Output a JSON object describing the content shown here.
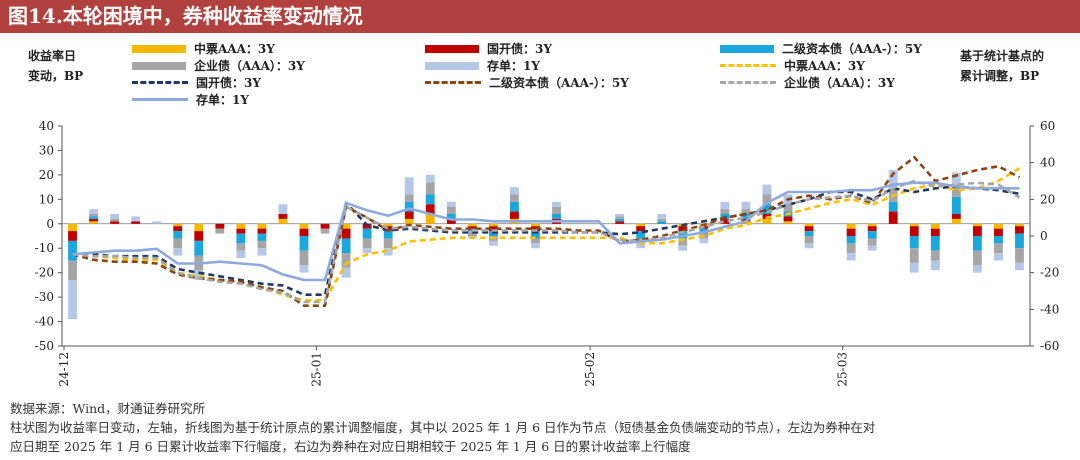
{
  "title": "图14.本轮困境中，券种收益率变动情况",
  "left_axis_title_line1": "收益率日",
  "left_axis_title_line2": "变动，BP",
  "right_axis_title_line1": "基于统计基点的",
  "right_axis_title_line2": "累计调整，BP",
  "legend": [
    {
      "label": "中票AAA：3Y",
      "kind": "bar",
      "color": "#f5b800"
    },
    {
      "label": "国开债：3Y",
      "kind": "bar",
      "color": "#c00000"
    },
    {
      "label": "二级资本债（AAA-）：5Y",
      "kind": "bar",
      "color": "#1aa7de"
    },
    {
      "label": "企业债（AAA）：3Y",
      "kind": "bar",
      "color": "#a6a6a6"
    },
    {
      "label": "存单：1Y",
      "kind": "bar",
      "color": "#b4c7e7"
    },
    {
      "label": "中票AAA：3Y",
      "kind": "line",
      "color": "#ffc000",
      "dash": "6,4"
    },
    {
      "label": "国开债：3Y",
      "kind": "line",
      "color": "#1f3864",
      "dash": "6,4"
    },
    {
      "label": "二级资本债（AAA-）：5Y",
      "kind": "line",
      "color": "#8b4513",
      "dash": "6,4"
    },
    {
      "label": "企业债（AAA）：3Y",
      "kind": "line",
      "color": "#a6a6a6",
      "dash": "6,4"
    },
    {
      "label": "存单：1Y",
      "kind": "line",
      "color": "#8ea9db",
      "dash": ""
    }
  ],
  "footer": {
    "source": "数据来源：Wind，财通证券研究所",
    "note_line1": "柱状图为收益率日变动，左轴，折线图为基于统计原点的累计调整幅度，其中以 2025 年 1 月 6 日作为节点（短债基金负债端变动的节点），左边为券种在对",
    "note_line2": "应日期至 2025 年 1 月 6 日累计收益率下行幅度，右边为券种在对应日期相较于 2025 年 1 月 6 日的累计收益率上行幅度"
  },
  "chart_data": {
    "type": "bar+line",
    "x_tick_labels": [
      "24-12",
      "25-01",
      "25-02",
      "25-03"
    ],
    "x_tick_index": [
      0,
      12,
      25,
      37
    ],
    "n_days": 46,
    "left_axis": {
      "range": [
        -50,
        40
      ],
      "ticks": [
        40,
        30,
        20,
        10,
        0,
        -10,
        -20,
        -30,
        -40,
        -50
      ]
    },
    "right_axis": {
      "range": [
        -60,
        60
      ],
      "ticks": [
        60,
        40,
        20,
        0,
        -20,
        -40,
        -60
      ]
    },
    "bar_series": [
      {
        "name": "中票AAA：3Y",
        "values": [
          -3,
          1,
          0,
          0,
          0,
          -1,
          -3,
          0,
          -2,
          -2,
          2,
          -2,
          0,
          -2,
          0,
          -1,
          2,
          4,
          0,
          -1,
          -1,
          2,
          -1,
          0,
          0,
          0,
          0,
          -1,
          0,
          -1,
          -1,
          0,
          1,
          2,
          1,
          -1,
          0,
          -2,
          -1,
          0,
          -1,
          -2,
          2,
          -1,
          -2,
          -1
        ]
      },
      {
        "name": "国开债：3Y",
        "values": [
          -4,
          1,
          1,
          1,
          0,
          -2,
          -4,
          -2,
          -2,
          -2,
          2,
          -3,
          -2,
          -4,
          -2,
          -2,
          3,
          4,
          2,
          -1,
          -2,
          3,
          -2,
          2,
          0,
          0,
          1,
          -2,
          0,
          -2,
          -1,
          2,
          1,
          2,
          2,
          -2,
          0,
          -3,
          -2,
          5,
          -4,
          -3,
          2,
          -4,
          -3,
          -3
        ]
      },
      {
        "name": "二级资本债（AAA-）：5Y",
        "values": [
          -8,
          1,
          0,
          0,
          0,
          -3,
          -6,
          0,
          -4,
          -3,
          0,
          -6,
          0,
          -6,
          -4,
          -3,
          4,
          4,
          2,
          -1,
          -2,
          4,
          -3,
          2,
          0,
          0,
          1,
          -3,
          1,
          -3,
          -2,
          2,
          2,
          4,
          2,
          -2,
          0,
          -3,
          -3,
          4,
          -5,
          -6,
          7,
          -6,
          -3,
          -6
        ]
      },
      {
        "name": "企业债（AAA）：3Y",
        "values": [
          -8,
          1,
          1,
          0,
          0,
          -4,
          -6,
          -2,
          -3,
          -3,
          0,
          -6,
          -2,
          -6,
          -4,
          -4,
          3,
          5,
          3,
          -2,
          -2,
          3,
          -2,
          3,
          0,
          0,
          1,
          -2,
          1,
          -3,
          -2,
          2,
          2,
          4,
          3,
          -3,
          0,
          -4,
          -3,
          5,
          -6,
          -4,
          5,
          -6,
          -4,
          -6
        ]
      },
      {
        "name": "存单：1Y",
        "values": [
          -16,
          2,
          2,
          2,
          1,
          -3,
          -4,
          0,
          -3,
          -3,
          4,
          -3,
          0,
          -4,
          -2,
          -3,
          7,
          3,
          2,
          -1,
          -2,
          3,
          -2,
          2,
          0,
          0,
          1,
          -2,
          2,
          -2,
          -2,
          3,
          3,
          4,
          4,
          -2,
          0,
          -3,
          -2,
          8,
          -4,
          -4,
          5,
          -3,
          -3,
          -3
        ]
      }
    ],
    "line_series": [
      {
        "name": "中票AAA：3Y",
        "values": [
          -10,
          -11,
          -12,
          -13,
          -13,
          -20,
          -22,
          -24,
          -25,
          -28,
          -32,
          -35,
          -35,
          -15,
          -10,
          -8,
          -3,
          -2,
          -1,
          -1,
          -1,
          -1,
          -1,
          -1,
          -1,
          -1,
          -1,
          -4,
          -4,
          -2,
          0,
          4,
          6,
          10,
          12,
          15,
          18,
          20,
          17,
          22,
          26,
          28,
          25,
          26,
          30,
          37
        ]
      },
      {
        "name": "国开债：3Y",
        "values": [
          -10,
          -10,
          -11,
          -11,
          -11,
          -18,
          -20,
          -22,
          -24,
          -26,
          -27,
          -32,
          -32,
          18,
          6,
          3,
          4,
          3,
          2,
          2,
          2,
          2,
          2,
          2,
          2,
          2,
          1,
          2,
          4,
          6,
          8,
          10,
          12,
          14,
          17,
          20,
          24,
          24,
          20,
          26,
          24,
          26,
          27,
          26,
          25,
          23
        ]
      },
      {
        "name": "二级资本债（AAA-）：5Y",
        "values": [
          -10,
          -13,
          -14,
          -14,
          -15,
          -21,
          -23,
          -24,
          -25,
          -28,
          -30,
          -38,
          -38,
          16,
          10,
          3,
          6,
          5,
          4,
          4,
          4,
          4,
          4,
          4,
          3,
          3,
          -3,
          -2,
          0,
          3,
          6,
          10,
          12,
          14,
          20,
          22,
          20,
          22,
          18,
          34,
          43,
          30,
          33,
          36,
          38,
          32
        ]
      },
      {
        "name": "企业债（AAA）：3Y",
        "values": [
          -10,
          -11,
          -11,
          -12,
          -12,
          -20,
          -23,
          -25,
          -26,
          -29,
          -31,
          -36,
          -36,
          16,
          10,
          4,
          5,
          4,
          3,
          3,
          3,
          3,
          3,
          3,
          2,
          2,
          -2,
          -3,
          -1,
          2,
          5,
          8,
          10,
          13,
          17,
          20,
          21,
          22,
          19,
          26,
          30,
          27,
          28,
          29,
          28,
          21
        ]
      },
      {
        "name": "存单：1Y",
        "values": [
          -10,
          -9,
          -8,
          -8,
          -7,
          -15,
          -15,
          -14,
          -15,
          -16,
          -21,
          -24,
          -24,
          18,
          14,
          11,
          15,
          12,
          9,
          9,
          8,
          8,
          8,
          8,
          8,
          8,
          -4,
          -3,
          -2,
          0,
          2,
          5,
          8,
          18,
          24,
          24,
          24,
          25,
          25,
          28,
          29,
          29,
          27,
          26,
          26,
          26
        ]
      }
    ]
  }
}
